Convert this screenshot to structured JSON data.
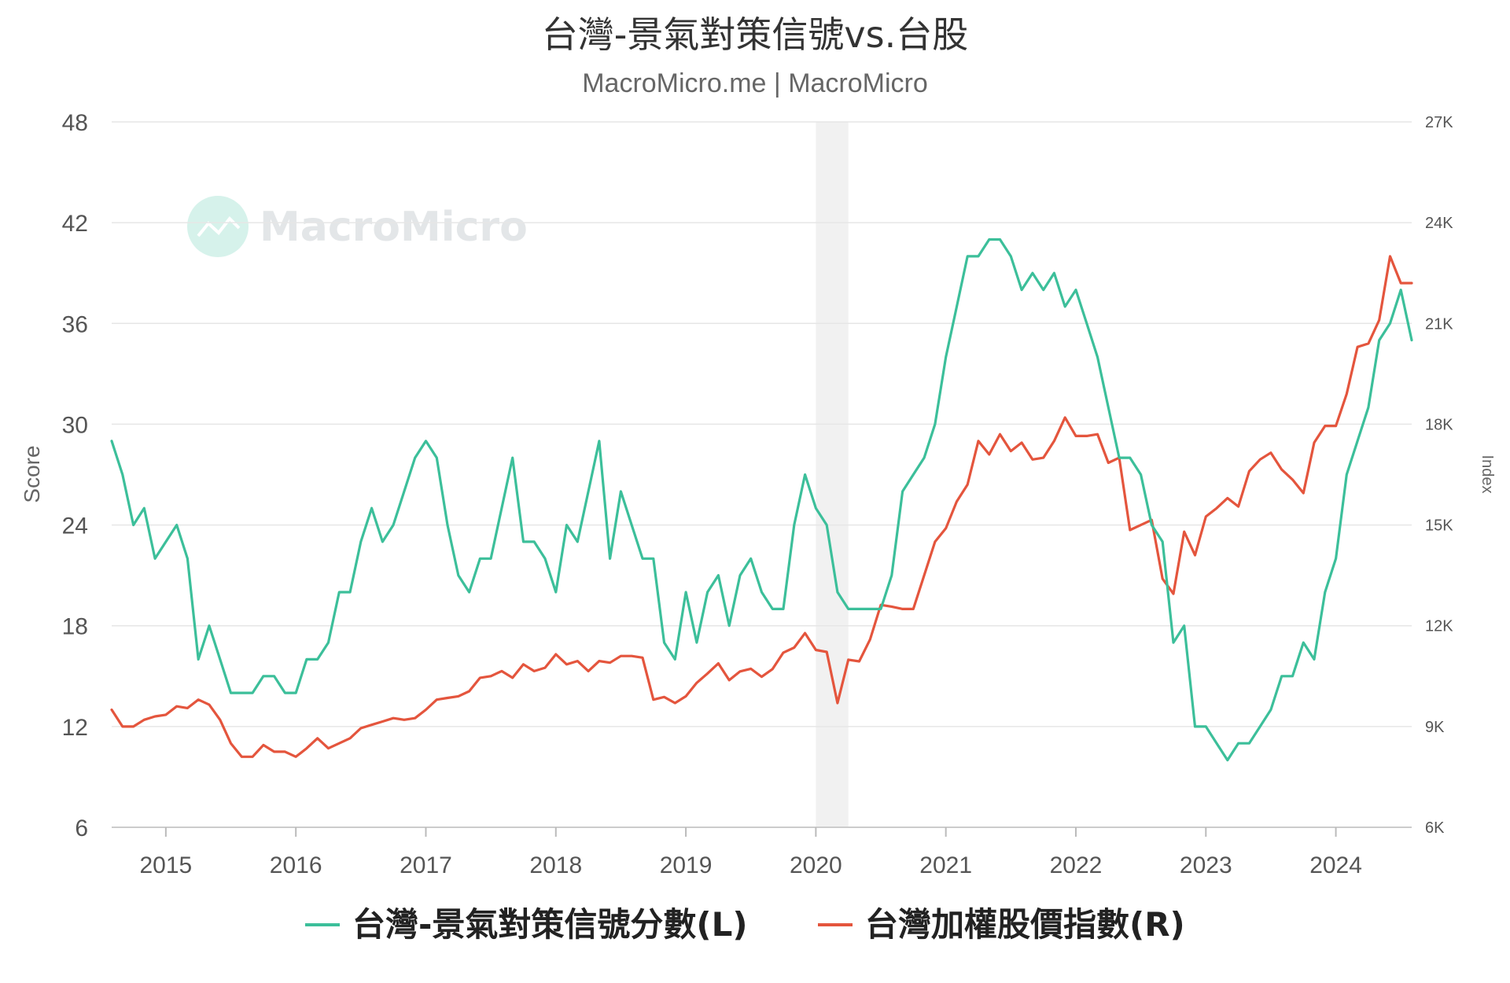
{
  "title": "台灣-景氣對策信號vs.台股",
  "subtitle": "MacroMicro.me | MacroMicro",
  "watermark": "MacroMicro",
  "chart_data": {
    "type": "line",
    "x_start": "2014-08",
    "x_step": "1 month",
    "x_ticks": [
      "2015",
      "2016",
      "2017",
      "2018",
      "2019",
      "2020",
      "2021",
      "2022",
      "2023",
      "2024"
    ],
    "y_left": {
      "label": "Score",
      "ticks": [
        "6",
        "12",
        "18",
        "24",
        "30",
        "36",
        "42",
        "48"
      ],
      "range": [
        6,
        48
      ]
    },
    "y_right": {
      "label": "Index",
      "ticks": [
        "6K",
        "9K",
        "12K",
        "15K",
        "18K",
        "21K",
        "24K",
        "27K"
      ],
      "range": [
        6000,
        27000
      ]
    },
    "shaded_range": [
      "2020-01",
      "2020-04"
    ],
    "grid": true,
    "legend_position": "bottom",
    "series": [
      {
        "name": "台灣-景氣對策信號分數(L)",
        "axis": "left",
        "color": "#3cbf9a",
        "values": [
          29,
          27,
          24,
          25,
          22,
          23,
          24,
          22,
          16,
          18,
          16,
          14,
          14,
          14,
          15,
          15,
          14,
          14,
          16,
          16,
          17,
          20,
          20,
          23,
          25,
          23,
          24,
          26,
          28,
          29,
          28,
          24,
          21,
          20,
          22,
          22,
          25,
          28,
          23,
          23,
          22,
          20,
          24,
          23,
          26,
          29,
          22,
          26,
          24,
          22,
          22,
          17,
          16,
          20,
          17,
          20,
          21,
          18,
          21,
          22,
          20,
          19,
          19,
          24,
          27,
          25,
          24,
          20,
          19,
          19,
          19,
          19,
          21,
          26,
          27,
          28,
          30,
          34,
          37,
          40,
          40,
          41,
          41,
          40,
          38,
          39,
          38,
          39,
          37,
          38,
          36,
          34,
          31,
          28,
          28,
          27,
          24,
          23,
          17,
          18,
          12,
          12,
          11,
          10,
          11,
          11,
          12,
          13,
          15,
          15,
          17,
          16,
          20,
          22,
          27,
          29,
          31,
          35,
          36,
          38,
          35
        ]
      },
      {
        "name": "台灣加權股價指數(R)",
        "axis": "right",
        "color": "#e4553d",
        "values": [
          9500,
          9000,
          9000,
          9200,
          9300,
          9350,
          9600,
          9550,
          9800,
          9650,
          9200,
          8500,
          8100,
          8100,
          8450,
          8250,
          8250,
          8100,
          8350,
          8650,
          8350,
          8500,
          8650,
          8950,
          9050,
          9150,
          9250,
          9200,
          9250,
          9500,
          9800,
          9850,
          9900,
          10050,
          10450,
          10500,
          10650,
          10450,
          10850,
          10650,
          10750,
          11150,
          10850,
          10950,
          10650,
          10950,
          10900,
          11100,
          11100,
          11050,
          9800,
          9880,
          9700,
          9900,
          10300,
          10580,
          10880,
          10380,
          10640,
          10720,
          10480,
          10710,
          11200,
          11350,
          11780,
          11280,
          11220,
          9700,
          10990,
          10940,
          11590,
          12620,
          12570,
          12500,
          12500,
          13500,
          14500,
          14900,
          15700,
          16200,
          17500,
          17100,
          17700,
          17200,
          17450,
          16950,
          17000,
          17500,
          18200,
          17650,
          17650,
          17700,
          16850,
          17000,
          14850,
          15000,
          15150,
          13400,
          12950,
          14800,
          14100,
          15250,
          15500,
          15800,
          15550,
          16600,
          16950,
          17150,
          16650,
          16350,
          15950,
          17450,
          17950,
          17950,
          18900,
          20300,
          20400,
          21100,
          23000,
          22200,
          22200
        ]
      }
    ]
  }
}
